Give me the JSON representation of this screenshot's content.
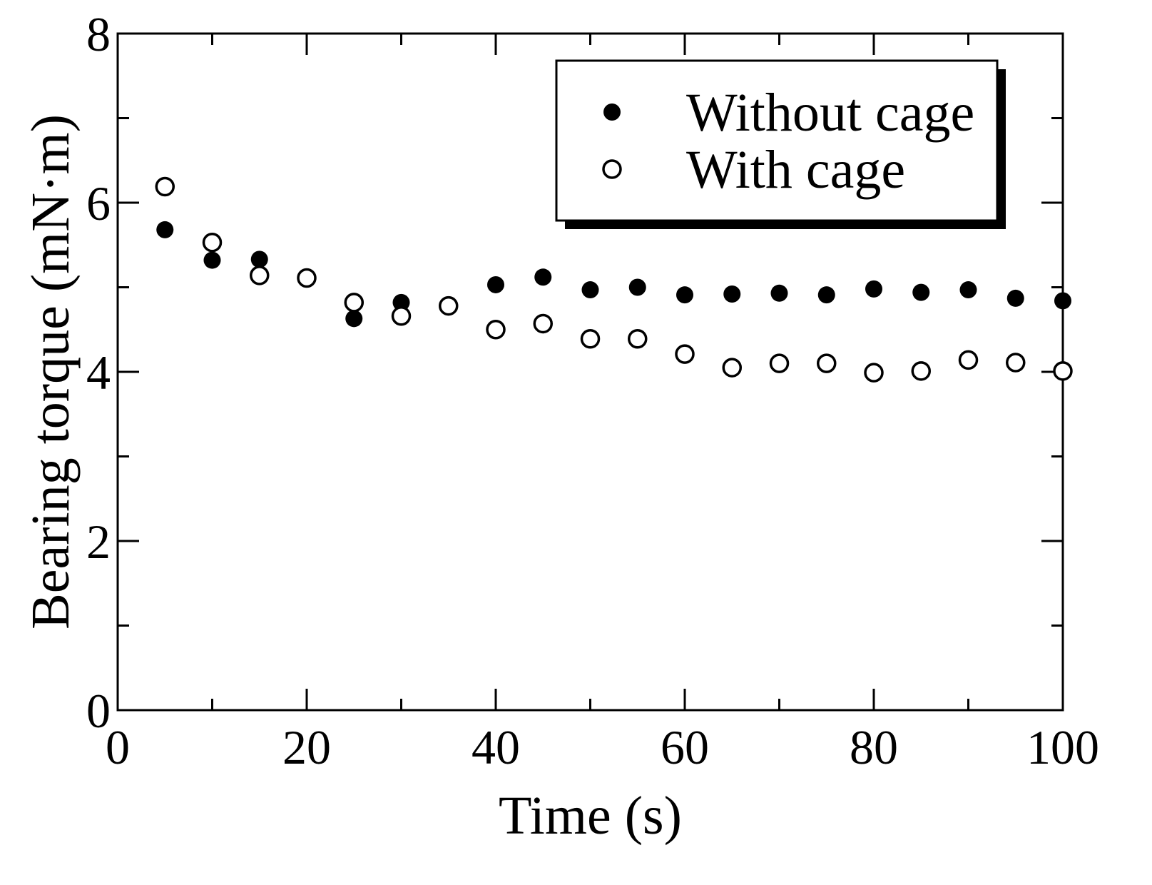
{
  "chart_data": {
    "type": "scatter",
    "title": "",
    "xlabel": "Time (s)",
    "ylabel": "Bearing torque (mN·m)",
    "xlim": [
      0,
      100
    ],
    "ylim": [
      0,
      8
    ],
    "x_major_ticks": [
      0,
      20,
      40,
      60,
      80,
      100
    ],
    "x_minor_ticks": [
      10,
      30,
      50,
      70,
      90
    ],
    "y_major_ticks": [
      0,
      2,
      4,
      6,
      8
    ],
    "y_minor_ticks": [
      1,
      3,
      5,
      7
    ],
    "x_tick_labels": [
      "0",
      "20",
      "40",
      "60",
      "80",
      "100"
    ],
    "y_tick_labels": [
      "0",
      "2",
      "4",
      "6",
      "8"
    ],
    "grid": false,
    "legend_position": "top-right",
    "series": [
      {
        "name": "Without cage",
        "marker": "filled-circle",
        "color": "#000000",
        "x": [
          5,
          10,
          15,
          25,
          30,
          40,
          45,
          50,
          55,
          60,
          65,
          70,
          75,
          80,
          85,
          90,
          95,
          100
        ],
        "y": [
          5.68,
          5.32,
          5.33,
          4.63,
          4.82,
          5.03,
          5.12,
          4.97,
          5.0,
          4.91,
          4.92,
          4.93,
          4.91,
          4.98,
          4.94,
          4.97,
          4.87,
          4.84
        ]
      },
      {
        "name": "With cage",
        "marker": "open-circle",
        "color": "#000000",
        "x": [
          5,
          10,
          15,
          20,
          25,
          30,
          35,
          40,
          45,
          50,
          55,
          60,
          65,
          70,
          75,
          80,
          85,
          90,
          95,
          100
        ],
        "y": [
          6.19,
          5.53,
          5.14,
          5.11,
          4.82,
          4.66,
          4.78,
          4.5,
          4.57,
          4.39,
          4.39,
          4.21,
          4.05,
          4.1,
          4.1,
          3.99,
          4.01,
          4.14,
          4.11,
          4.01
        ]
      }
    ]
  }
}
